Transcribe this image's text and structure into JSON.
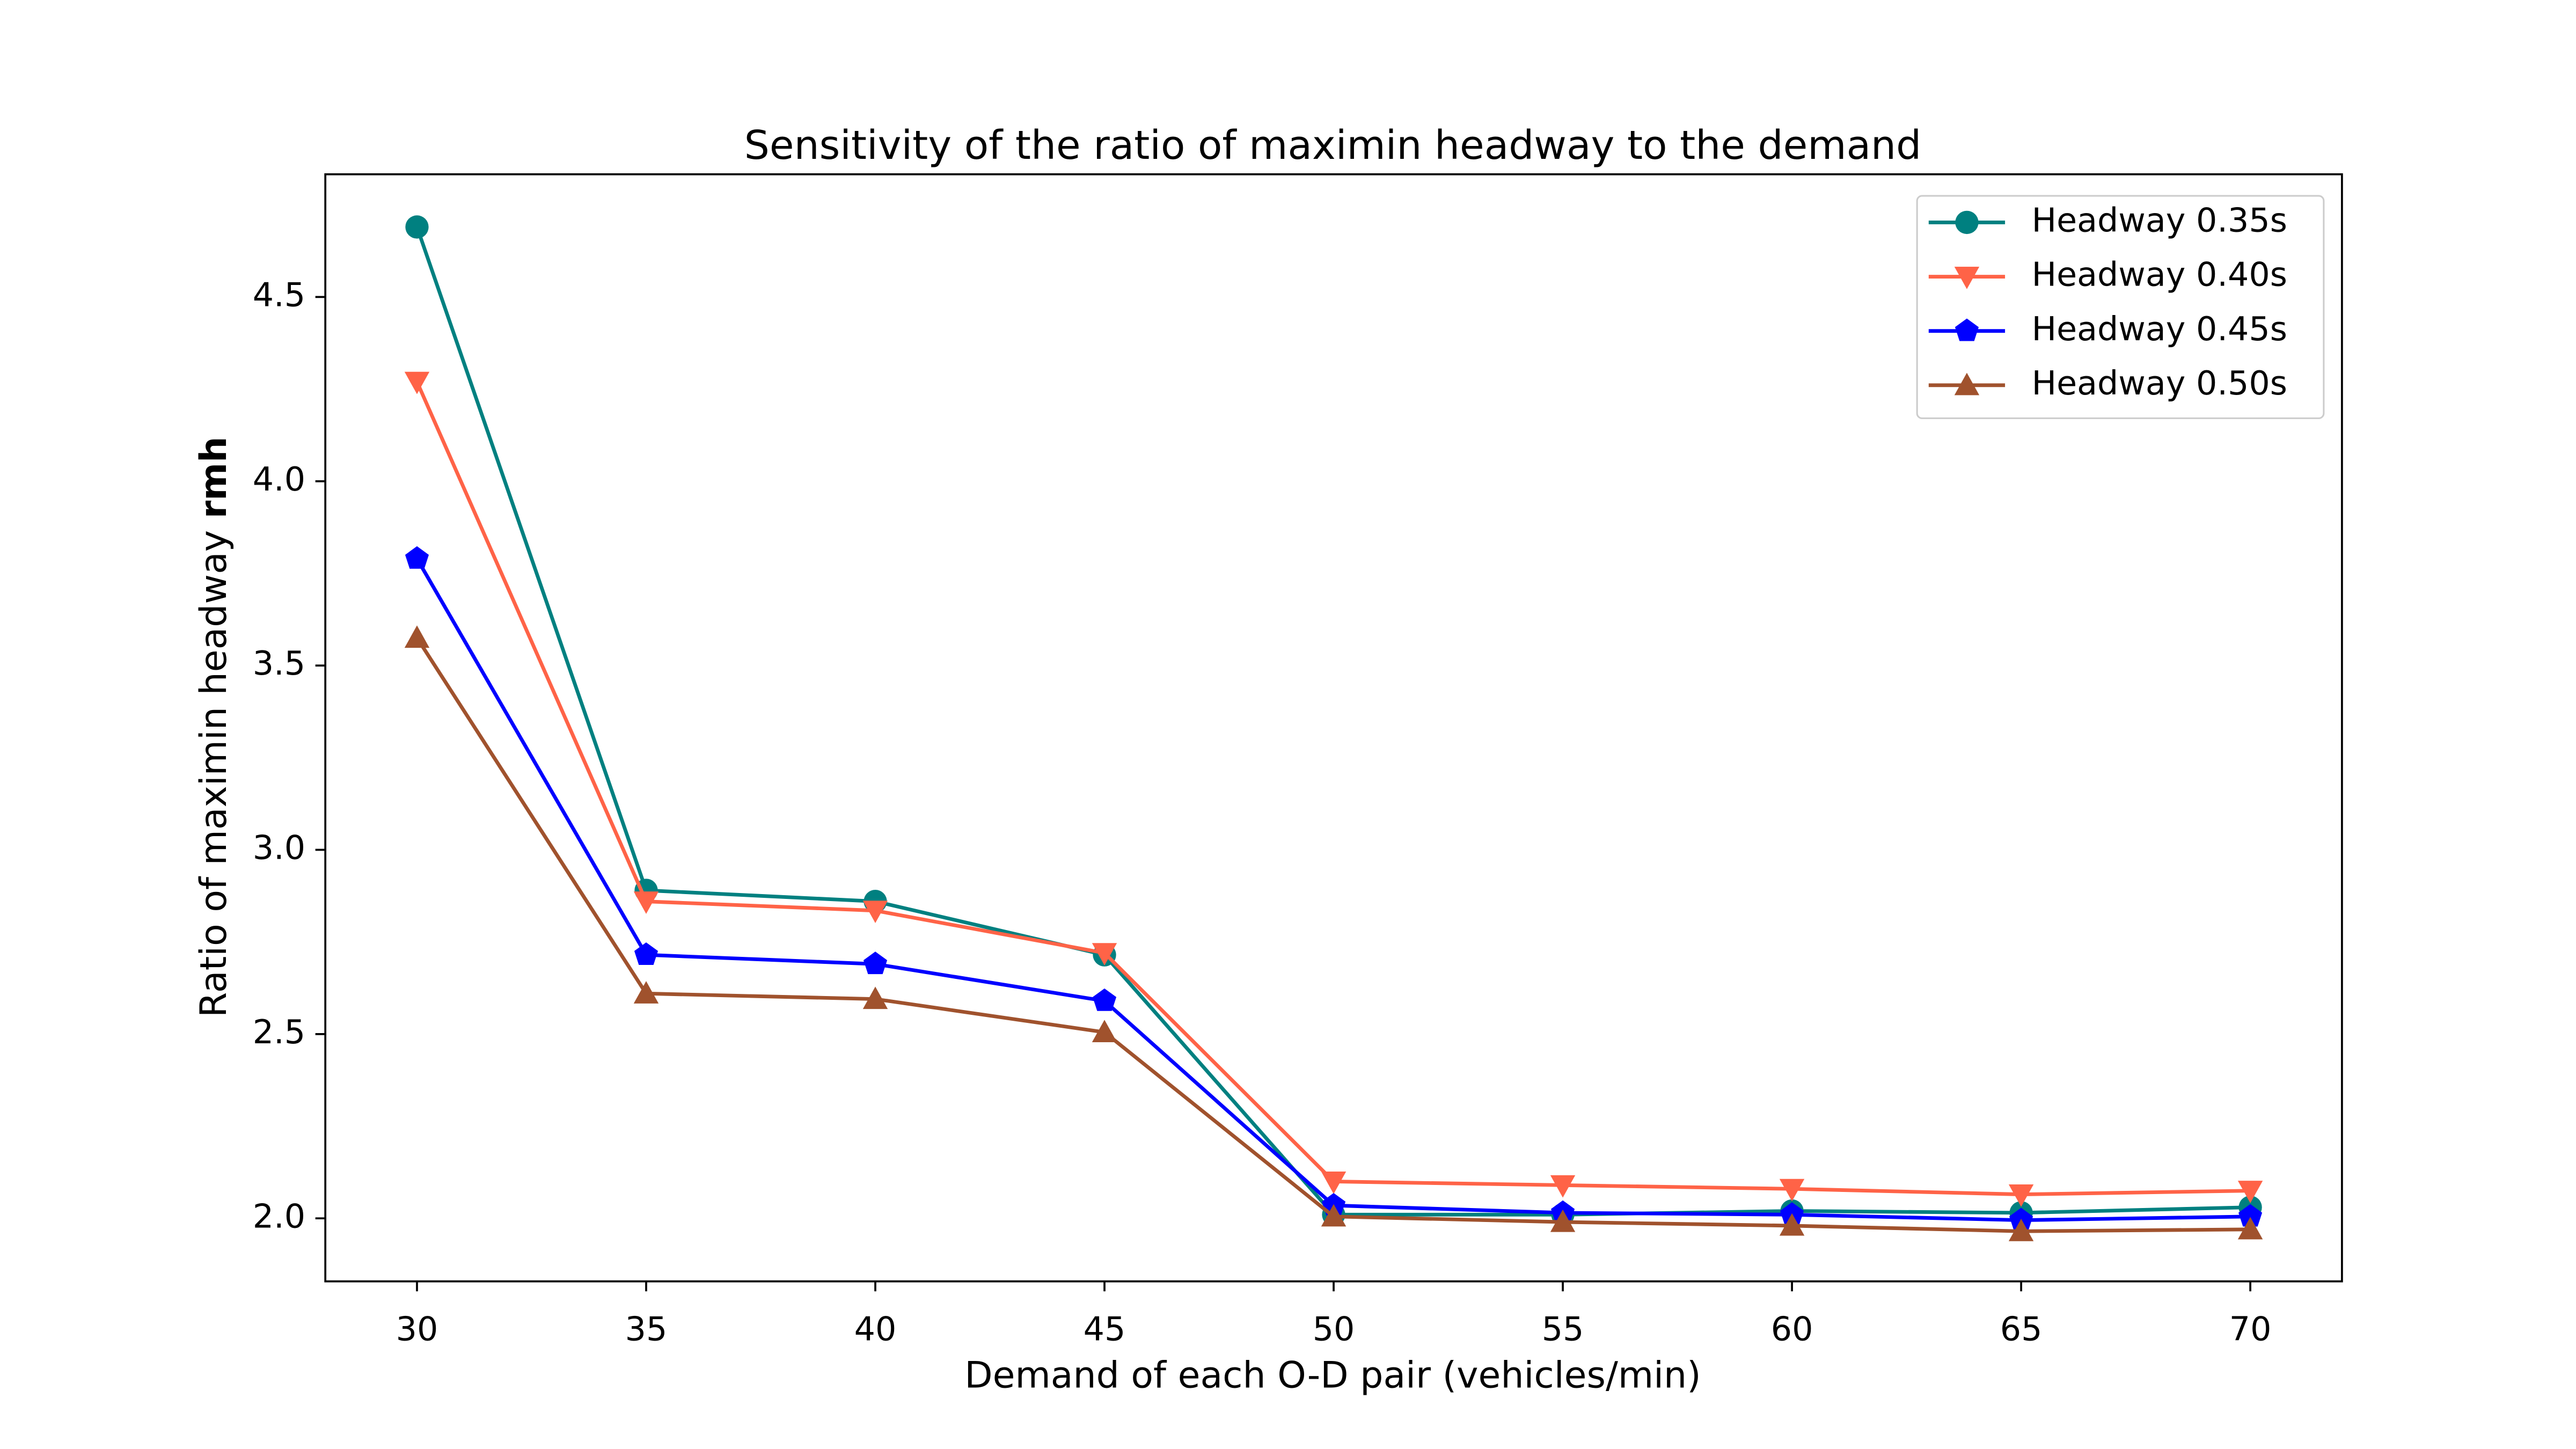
{
  "chart_data": {
    "type": "line",
    "title": "Sensitivity of the ratio of maximin headway to the demand",
    "xlabel": "Demand of each O-D pair (vehicles/min)",
    "ylabel": "Ratio of maximin headway",
    "ylabel_bold": "rmh",
    "x": [
      30,
      35,
      40,
      45,
      50,
      55,
      60,
      65,
      70
    ],
    "series": [
      {
        "name": "Headway 0.35s",
        "color": "#008080",
        "marker": "circle",
        "values": [
          4.69,
          2.89,
          2.86,
          2.715,
          2.01,
          2.01,
          2.02,
          2.015,
          2.03
        ]
      },
      {
        "name": "Headway 0.40s",
        "color": "#ff6347",
        "marker": "triangle-down",
        "values": [
          4.27,
          2.86,
          2.835,
          2.72,
          2.1,
          2.09,
          2.08,
          2.065,
          2.075
        ]
      },
      {
        "name": "Headway 0.45s",
        "color": "#0000ff",
        "marker": "pentagon",
        "values": [
          3.79,
          2.715,
          2.69,
          2.59,
          2.035,
          2.015,
          2.01,
          1.995,
          2.005
        ]
      },
      {
        "name": "Headway 0.50s",
        "color": "#a0522d",
        "marker": "triangle-up",
        "values": [
          3.575,
          2.61,
          2.595,
          2.505,
          2.005,
          1.99,
          1.98,
          1.965,
          1.97
        ]
      }
    ],
    "xlim": [
      28,
      72
    ],
    "xticks": [
      30,
      35,
      40,
      45,
      50,
      55,
      60,
      65,
      70
    ],
    "ylim": [
      1.829,
      4.833
    ],
    "yticks": [
      {
        "value": 2.0,
        "label": "2.0"
      },
      2.5,
      {
        "value": 3.0,
        "label": "3.0"
      },
      3.5,
      {
        "value": 4.0,
        "label": "4.0"
      },
      4.5
    ],
    "legend": "upper right",
    "grid": false
  }
}
